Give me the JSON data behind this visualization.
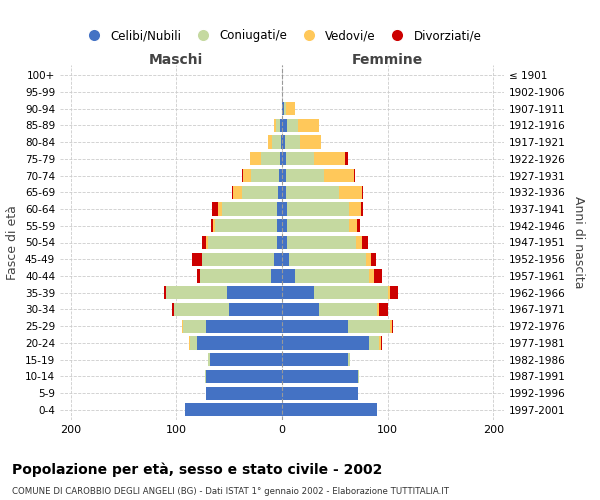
{
  "age_groups": [
    "0-4",
    "5-9",
    "10-14",
    "15-19",
    "20-24",
    "25-29",
    "30-34",
    "35-39",
    "40-44",
    "45-49",
    "50-54",
    "55-59",
    "60-64",
    "65-69",
    "70-74",
    "75-79",
    "80-84",
    "85-89",
    "90-94",
    "95-99",
    "100+"
  ],
  "birth_years": [
    "1997-2001",
    "1992-1996",
    "1987-1991",
    "1982-1986",
    "1977-1981",
    "1972-1976",
    "1967-1971",
    "1962-1966",
    "1957-1961",
    "1952-1956",
    "1947-1951",
    "1942-1946",
    "1937-1941",
    "1932-1936",
    "1927-1931",
    "1922-1926",
    "1917-1921",
    "1912-1916",
    "1907-1911",
    "1902-1906",
    "≤ 1901"
  ],
  "maschi": {
    "celibi": [
      92,
      72,
      72,
      68,
      80,
      72,
      50,
      52,
      10,
      8,
      5,
      5,
      5,
      4,
      3,
      2,
      1,
      2,
      0,
      0,
      0
    ],
    "coniugati": [
      0,
      0,
      1,
      2,
      7,
      22,
      52,
      58,
      68,
      68,
      65,
      58,
      52,
      34,
      26,
      18,
      8,
      4,
      0,
      0,
      0
    ],
    "vedovi": [
      0,
      0,
      0,
      0,
      1,
      1,
      0,
      0,
      0,
      0,
      2,
      2,
      4,
      8,
      8,
      10,
      4,
      2,
      0,
      0,
      0
    ],
    "divorziati": [
      0,
      0,
      0,
      0,
      0,
      0,
      2,
      2,
      2,
      9,
      4,
      2,
      5,
      1,
      1,
      0,
      0,
      0,
      0,
      0,
      0
    ]
  },
  "femmine": {
    "nubili": [
      90,
      72,
      72,
      62,
      82,
      62,
      35,
      30,
      12,
      7,
      5,
      5,
      5,
      4,
      4,
      4,
      3,
      5,
      2,
      0,
      0
    ],
    "coniugate": [
      0,
      0,
      1,
      2,
      10,
      40,
      55,
      70,
      70,
      72,
      65,
      58,
      58,
      50,
      36,
      26,
      14,
      10,
      2,
      0,
      0
    ],
    "vedove": [
      0,
      0,
      0,
      0,
      2,
      2,
      2,
      2,
      5,
      5,
      6,
      8,
      12,
      22,
      28,
      30,
      20,
      20,
      8,
      0,
      0
    ],
    "divorziate": [
      0,
      0,
      0,
      0,
      1,
      1,
      8,
      8,
      8,
      5,
      5,
      3,
      2,
      1,
      1,
      2,
      0,
      0,
      0,
      0,
      0
    ]
  },
  "colors": {
    "celibi_nubili": "#4472c4",
    "coniugati": "#c5d9a0",
    "vedovi": "#ffc85a",
    "divorziati": "#cc0000"
  },
  "xlim": [
    -210,
    210
  ],
  "xticks": [
    -200,
    -100,
    0,
    100,
    200
  ],
  "xticklabels": [
    "200",
    "100",
    "0",
    "100",
    "200"
  ],
  "title": "Popolazione per età, sesso e stato civile - 2002",
  "subtitle": "COMUNE DI CAROBBIO DEGLI ANGELI (BG) - Dati ISTAT 1° gennaio 2002 - Elaborazione TUTTITALIA.IT",
  "ylabel_left": "Fasce di età",
  "ylabel_right": "Anni di nascita",
  "label_maschi": "Maschi",
  "label_femmine": "Femmine",
  "legend_labels": [
    "Celibi/Nubili",
    "Coniugati/e",
    "Vedovi/e",
    "Divorziati/e"
  ],
  "bg_color": "#ffffff",
  "grid_color": "#cccccc"
}
